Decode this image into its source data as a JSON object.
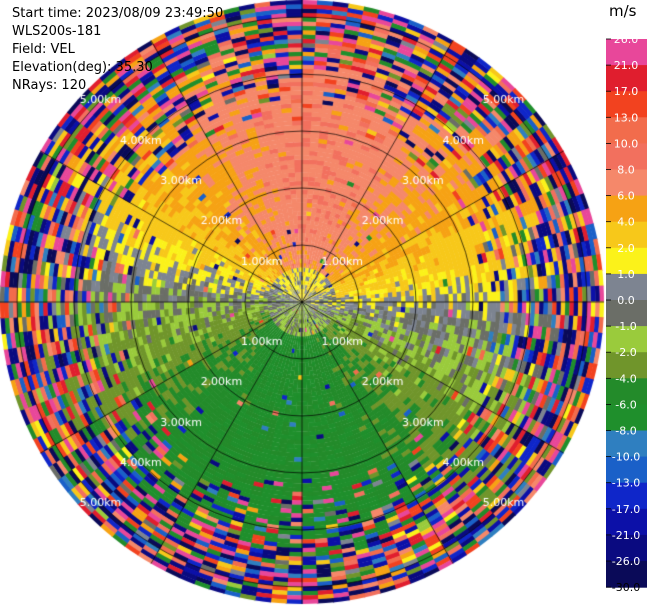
{
  "header": {
    "start_time": "Start time: 2023/08/09 23:49:50",
    "instrument": "WLS200s-181",
    "field": "Field: VEL",
    "elevation": "Elevation(deg): 35.30",
    "nrays": "NRays: 120"
  },
  "colorbar": {
    "unit": "m/s",
    "ticks": [
      "26.0",
      "21.0",
      "17.0",
      "13.0",
      "10.0",
      "8.0",
      "6.0",
      "4.0",
      "2.0",
      "1.0",
      "0.0",
      "-1.0",
      "-2.0",
      "-4.0",
      "-6.0",
      "-8.0",
      "-10.0",
      "-13.0",
      "-17.0",
      "-21.0",
      "-26.0",
      "-30.0"
    ],
    "bins": [
      {
        "label": "26.0",
        "color": "#e8479a"
      },
      {
        "label": "21.0",
        "color": "#e01e2e"
      },
      {
        "label": "17.0",
        "color": "#f2421f"
      },
      {
        "label": "13.0",
        "color": "#f26c4c"
      },
      {
        "label": "10.0",
        "color": "#f2705e"
      },
      {
        "label": "8.0",
        "color": "#f5886a"
      },
      {
        "label": "6.0",
        "color": "#f6a214"
      },
      {
        "label": "4.0",
        "color": "#f7c81a"
      },
      {
        "label": "2.0",
        "color": "#fbf21a"
      },
      {
        "label": "1.0",
        "color": "#7d8491"
      },
      {
        "label": "0.0",
        "color": "#6b6e67"
      },
      {
        "label": "-1.0",
        "color": "#9acb3c"
      },
      {
        "label": "-2.0",
        "color": "#70952b"
      },
      {
        "label": "-4.0",
        "color": "#238b2a"
      },
      {
        "label": "-6.0",
        "color": "#1f8f2c"
      },
      {
        "label": "-8.0",
        "color": "#2f7fc0"
      },
      {
        "label": "-10.0",
        "color": "#1a60c8"
      },
      {
        "label": "-13.0",
        "color": "#0f26c9"
      },
      {
        "label": "-17.0",
        "color": "#0c10a8"
      },
      {
        "label": "-21.0",
        "color": "#0a0a80"
      },
      {
        "label": "-26.0",
        "color": "#0a0a58"
      }
    ]
  },
  "chart_data": {
    "type": "heatmap",
    "projection": "ppi",
    "field": "VEL",
    "unit": "m/s",
    "range_rings_km": [
      1,
      2,
      3,
      4,
      5
    ],
    "ring_labels": [
      "1.00km",
      "2.00km",
      "3.00km",
      "4.00km",
      "5.00km"
    ],
    "max_range_km": 5.3,
    "azimuth_spokes_deg": [
      0,
      30,
      60,
      90,
      120,
      150,
      180,
      210,
      240,
      270,
      300,
      330
    ],
    "nrays": 120,
    "elevation_deg": 35.3,
    "velocity_range": [
      -30,
      26
    ],
    "pattern": "Positive (receding, 2 to 8 m/s, yellow/orange) velocities dominate the northern half; negative (approaching, -1 to -6 m/s, green) velocities dominate the southern half; zero isodop near east-west; beyond ~3.5 km range the field is noisy across the full colour scale."
  }
}
